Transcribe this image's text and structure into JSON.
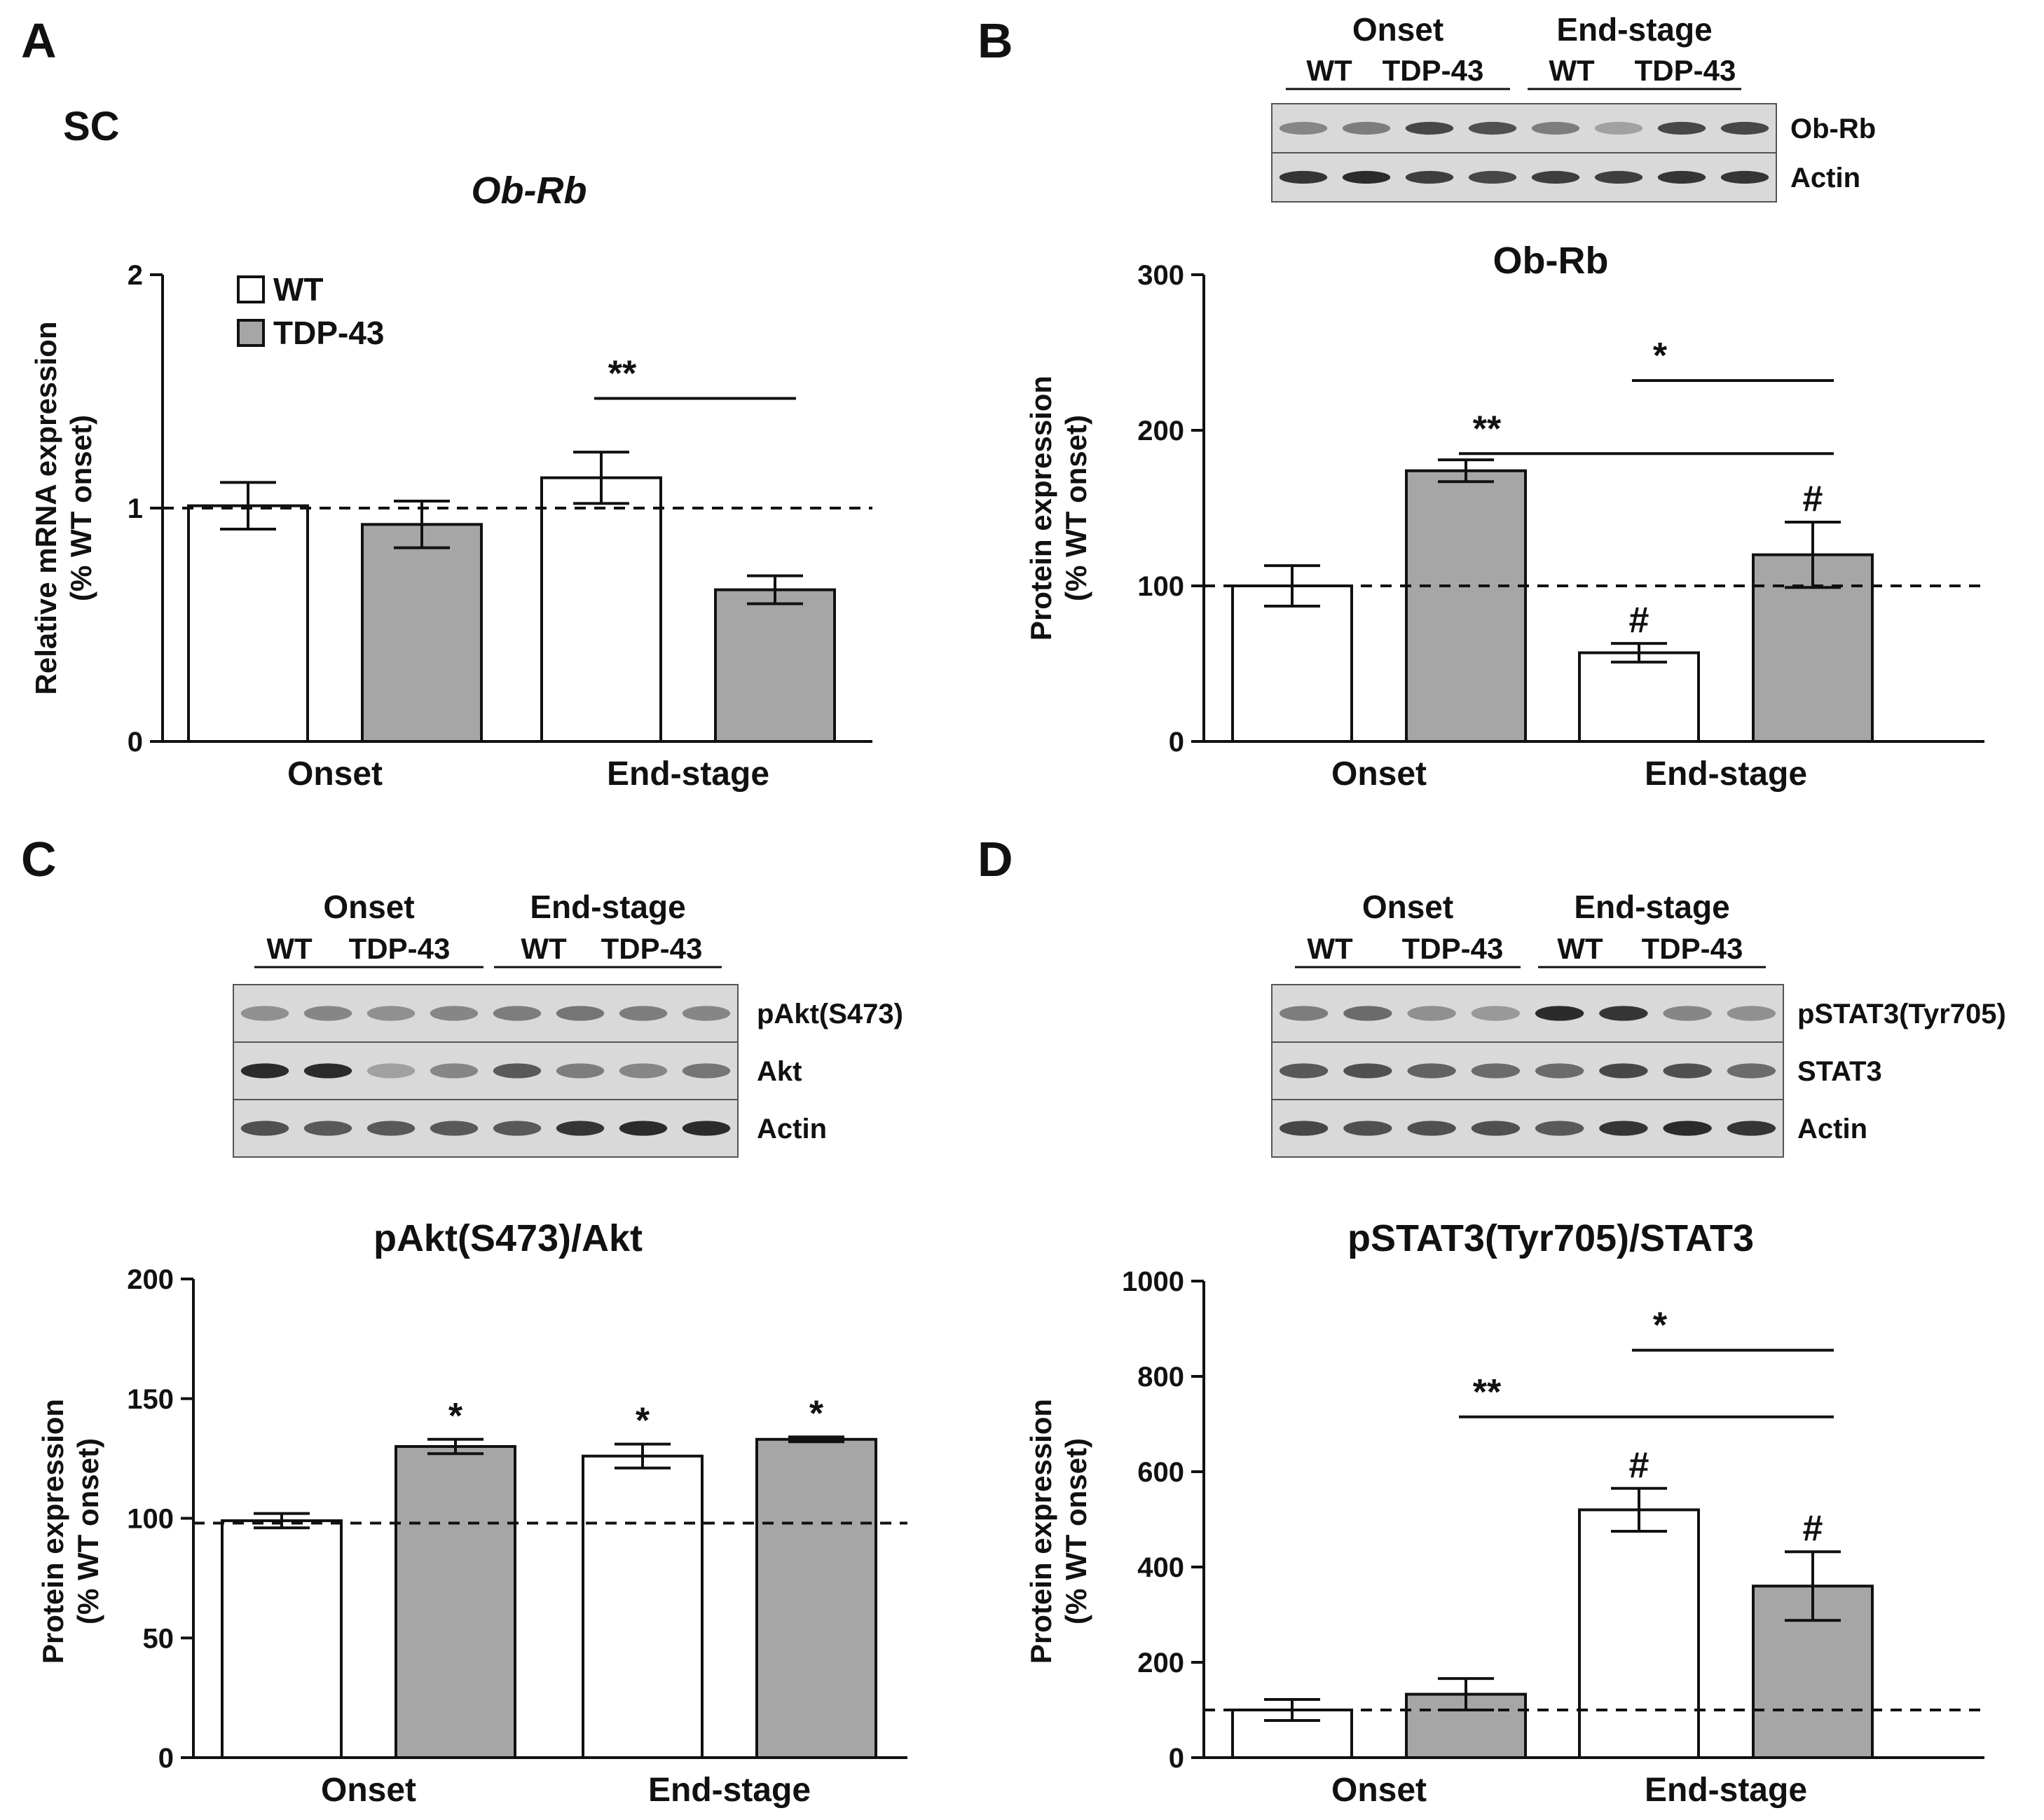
{
  "colors": {
    "wt": "#ffffff",
    "tdp43": "#a6a6a6",
    "stroke": "#111111",
    "blot_bg": "#d9d9d9",
    "band": "#222222"
  },
  "legend": [
    "WT",
    "TDP-43"
  ],
  "chart_data": [
    {
      "panel": "A",
      "type": "bar",
      "region_label": "SC",
      "title": "Ob-Rb",
      "title_italic": true,
      "ylabel": "Relative mRNA expression",
      "ylabel2": "(% WT onset)",
      "ylim": [
        0,
        2
      ],
      "yticks": [
        "0",
        "1",
        "2"
      ],
      "reference_line": 1,
      "categories": [
        "Onset",
        "End-stage"
      ],
      "series": [
        {
          "name": "WT",
          "values": [
            1.01,
            1.13
          ],
          "errors": [
            0.1,
            0.11
          ]
        },
        {
          "name": "TDP-43",
          "values": [
            0.93,
            0.65
          ],
          "errors": [
            0.1,
            0.06
          ]
        }
      ],
      "marks": [],
      "brackets": [
        {
          "from": [
            1,
            0
          ],
          "to": [
            1,
            1
          ],
          "y": 1.47,
          "label": "**"
        }
      ]
    },
    {
      "panel": "B",
      "type": "bar",
      "title": "Ob-Rb",
      "ylabel": "Protein expression",
      "ylabel2": "(% WT onset)",
      "ylim": [
        0,
        300
      ],
      "yticks": [
        "0",
        "100",
        "200",
        "300"
      ],
      "reference_line": 100,
      "categories": [
        "Onset",
        "End-stage"
      ],
      "series": [
        {
          "name": "WT",
          "values": [
            100,
            57
          ],
          "errors": [
            13,
            6
          ]
        },
        {
          "name": "TDP-43",
          "values": [
            174,
            120
          ],
          "errors": [
            7,
            21
          ]
        }
      ],
      "marks": [
        {
          "series": 0,
          "cat": 1,
          "label": "#"
        },
        {
          "series": 1,
          "cat": 1,
          "label": "#"
        }
      ],
      "brackets": [
        {
          "from": [
            1,
            0
          ],
          "to": [
            1,
            1
          ],
          "y": 232,
          "label": "*"
        },
        {
          "from": [
            0,
            1
          ],
          "to": [
            1,
            1
          ],
          "y": 185,
          "label": "**"
        }
      ],
      "blot": {
        "groups": [
          "Onset",
          "End-stage"
        ],
        "lanes": [
          "WT",
          "TDP-43",
          "WT",
          "TDP-43"
        ],
        "rows": [
          {
            "label": "Ob-Rb",
            "intensity": [
              0.45,
              0.5,
              0.8,
              0.75,
              0.5,
              0.3,
              0.8,
              0.8
            ]
          },
          {
            "label": "Actin",
            "intensity": [
              0.9,
              0.95,
              0.85,
              0.8,
              0.85,
              0.85,
              0.9,
              0.9
            ]
          }
        ]
      }
    },
    {
      "panel": "C",
      "type": "bar",
      "title": "pAkt(S473)/Akt",
      "ylabel": "Protein expression",
      "ylabel2": "(% WT onset)",
      "ylim": [
        0,
        200
      ],
      "yticks": [
        "0",
        "50",
        "100",
        "150",
        "200"
      ],
      "reference_line": 98,
      "categories": [
        "Onset",
        "End-stage"
      ],
      "series": [
        {
          "name": "WT",
          "values": [
            99,
            126
          ],
          "errors": [
            3,
            5
          ]
        },
        {
          "name": "TDP-43",
          "values": [
            130,
            133
          ],
          "errors": [
            3,
            1
          ]
        }
      ],
      "marks": [
        {
          "series": 1,
          "cat": 0,
          "label": "*"
        },
        {
          "series": 0,
          "cat": 1,
          "label": "*"
        },
        {
          "series": 1,
          "cat": 1,
          "label": "*"
        }
      ],
      "brackets": [],
      "blot": {
        "groups": [
          "Onset",
          "End-stage"
        ],
        "lanes": [
          "WT",
          "TDP-43",
          "WT",
          "TDP-43"
        ],
        "rows": [
          {
            "label": "pAkt(S473)",
            "intensity": [
              0.4,
              0.45,
              0.4,
              0.45,
              0.5,
              0.55,
              0.5,
              0.45
            ]
          },
          {
            "label": "Akt",
            "intensity": [
              0.95,
              0.95,
              0.3,
              0.45,
              0.7,
              0.5,
              0.45,
              0.55
            ]
          },
          {
            "label": "Actin",
            "intensity": [
              0.75,
              0.7,
              0.7,
              0.7,
              0.7,
              0.9,
              0.95,
              0.95
            ]
          }
        ]
      }
    },
    {
      "panel": "D",
      "type": "bar",
      "title": "pSTAT3(Tyr705)/STAT3",
      "ylabel": "Protein expression",
      "ylabel2": "(% WT onset)",
      "ylim": [
        0,
        1000
      ],
      "yticks": [
        "0",
        "200",
        "400",
        "600",
        "800",
        "1000"
      ],
      "reference_line": 100,
      "categories": [
        "Onset",
        "End-stage"
      ],
      "series": [
        {
          "name": "WT",
          "values": [
            100,
            520
          ],
          "errors": [
            22,
            45
          ]
        },
        {
          "name": "TDP-43",
          "values": [
            133,
            360
          ],
          "errors": [
            33,
            72
          ]
        }
      ],
      "marks": [
        {
          "series": 0,
          "cat": 1,
          "label": "#"
        },
        {
          "series": 1,
          "cat": 1,
          "label": "#"
        }
      ],
      "brackets": [
        {
          "from": [
            1,
            0
          ],
          "to": [
            1,
            1
          ],
          "y": 855,
          "label": "*"
        },
        {
          "from": [
            0,
            1
          ],
          "to": [
            1,
            1
          ],
          "y": 715,
          "label": "**"
        }
      ],
      "blot": {
        "groups": [
          "Onset",
          "End-stage"
        ],
        "lanes": [
          "WT",
          "TDP-43",
          "WT",
          "TDP-43"
        ],
        "rows": [
          {
            "label": "pSTAT3(Tyr705)",
            "intensity": [
              0.5,
              0.6,
              0.4,
              0.35,
              0.95,
              0.9,
              0.45,
              0.4
            ]
          },
          {
            "label": "STAT3",
            "intensity": [
              0.7,
              0.75,
              0.65,
              0.6,
              0.6,
              0.8,
              0.75,
              0.6
            ]
          },
          {
            "label": "Actin",
            "intensity": [
              0.8,
              0.75,
              0.75,
              0.75,
              0.7,
              0.9,
              0.95,
              0.9
            ]
          }
        ]
      }
    }
  ]
}
